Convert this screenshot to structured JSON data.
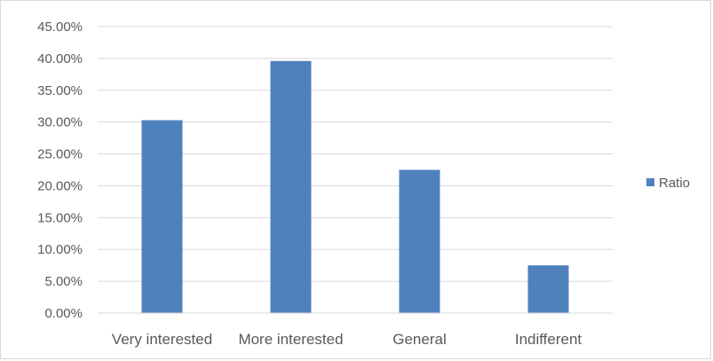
{
  "chart_data": {
    "type": "bar",
    "categories": [
      "Very interested",
      "More interested",
      "General",
      "Indifferent"
    ],
    "series": [
      {
        "name": "Ratio",
        "values": [
          30.3,
          39.6,
          22.5,
          7.5
        ],
        "color": "#4f81bd"
      }
    ],
    "y_ticks": [
      "0.00%",
      "5.00%",
      "10.00%",
      "15.00%",
      "20.00%",
      "25.00%",
      "30.00%",
      "35.00%",
      "40.00%",
      "45.00%"
    ],
    "ylim": [
      0,
      45
    ],
    "y_unit": "%",
    "grid": true,
    "legend_position": "right",
    "title": "",
    "xlabel": "",
    "ylabel": ""
  }
}
